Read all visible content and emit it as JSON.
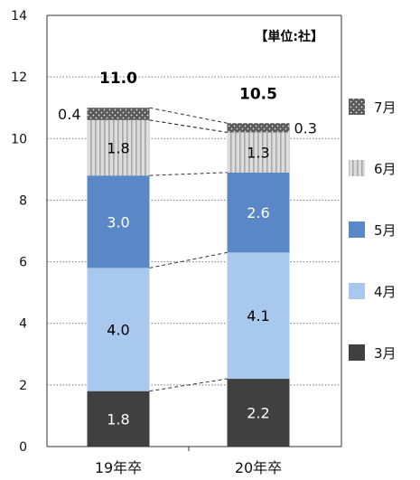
{
  "chart_data": {
    "type": "bar",
    "stacked": true,
    "unit_label": "【単位:社】",
    "categories": [
      "19年卒",
      "20年卒"
    ],
    "ylim": [
      0,
      14
    ],
    "yticks": [
      "0",
      "2",
      "4",
      "6",
      "8",
      "10",
      "12",
      "14"
    ],
    "grid": true,
    "legend_position": "right",
    "series": [
      {
        "name": "3月",
        "values": [
          1.8,
          2.2
        ],
        "labels": [
          "1.8",
          "2.2"
        ],
        "color": "#404040",
        "pattern": "solid",
        "label_color": "#ffffff"
      },
      {
        "name": "4月",
        "values": [
          4.0,
          4.1
        ],
        "labels": [
          "4.0",
          "4.1"
        ],
        "color": "#a9c8ee",
        "pattern": "solid",
        "label_color": "#000000"
      },
      {
        "name": "5月",
        "values": [
          3.0,
          2.6
        ],
        "labels": [
          "3.0",
          "2.6"
        ],
        "color": "#5a87c5",
        "pattern": "solid",
        "label_color": "#ffffff"
      },
      {
        "name": "6月",
        "values": [
          1.8,
          1.3
        ],
        "labels": [
          "1.8",
          "1.3"
        ],
        "color": "#d4d4d4",
        "pattern": "stripes",
        "label_color": "#000000"
      },
      {
        "name": "7月",
        "values": [
          0.4,
          0.3
        ],
        "labels": [
          "0.4",
          "0.3"
        ],
        "color": "#5a5a5a",
        "pattern": "dots",
        "label_color": "#000000"
      }
    ],
    "totals": [
      "11.0",
      "10.5"
    ]
  }
}
